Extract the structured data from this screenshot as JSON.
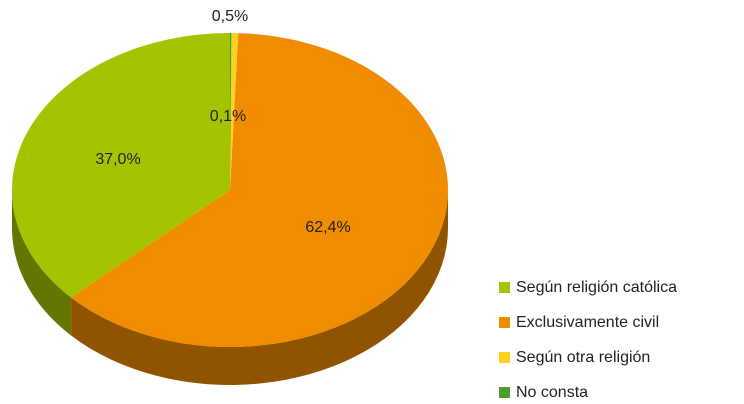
{
  "chart_data": {
    "type": "pie",
    "categories": [
      "Según religión católica",
      "Exclusivamente civil",
      "Según otra religión",
      "No consta"
    ],
    "values": [
      37.0,
      62.4,
      0.5,
      0.1
    ],
    "value_labels": [
      "37,0%",
      "62,4%",
      "0,5%",
      "0,1%"
    ],
    "colors": [
      "#a5c400",
      "#f08c00",
      "#ffd21e",
      "#4e9a28"
    ],
    "legend": "right"
  }
}
